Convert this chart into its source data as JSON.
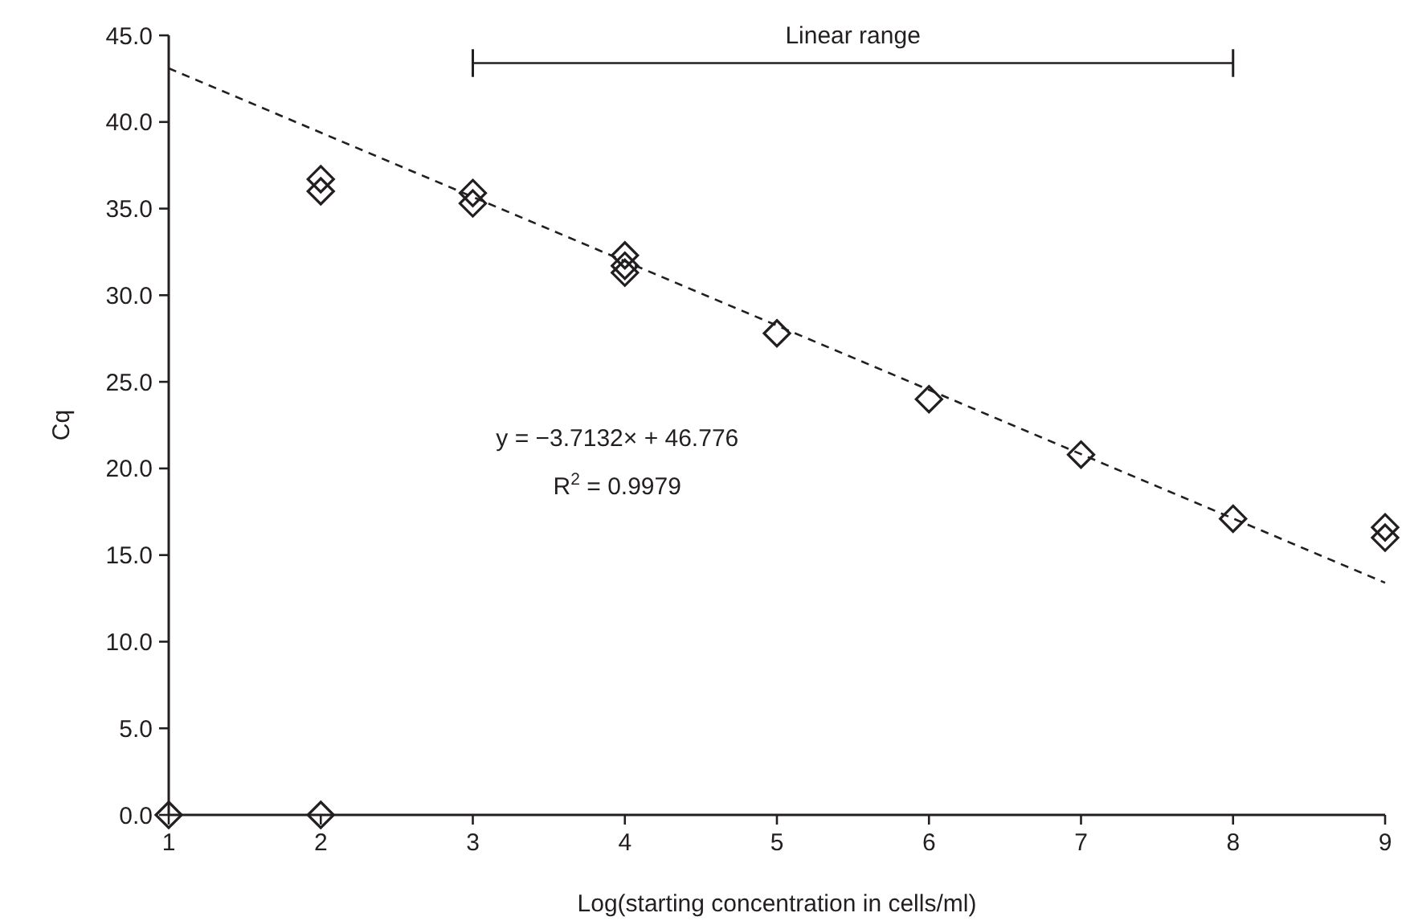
{
  "chart_data": {
    "type": "scatter",
    "xlabel": "Log(starting concentration in cells/ml)",
    "ylabel": "Cq",
    "series": [
      {
        "color": "#231f20",
        "x": [
          1,
          2,
          2,
          2,
          3,
          3,
          4,
          4,
          4,
          5,
          6,
          7,
          8,
          9,
          9
        ],
        "values": [
          0,
          0,
          36.7,
          36.0,
          35.9,
          35.3,
          32.3,
          31.7,
          31.3,
          27.8,
          24.0,
          20.8,
          17.1,
          16.6,
          16.0
        ]
      },
      {
        "type": "line",
        "color": "#231f20",
        "line_style": "dashed",
        "marker": "none",
        "x": [
          1,
          9
        ],
        "values": [
          43.1,
          13.4
        ]
      },
      {
        "type": "line",
        "color": "#231f20",
        "line_style": "solid",
        "marker": "none",
        "x": [
          3,
          8
        ],
        "values": [
          43.4,
          43.4
        ],
        "errors": [
          0.8,
          0.8
        ]
      }
    ],
    "marker": "diamond",
    "xlim": [
      1,
      9
    ],
    "ylim": [
      0,
      45
    ],
    "xticks": [
      1,
      2,
      3,
      4,
      5,
      6,
      7,
      8,
      9
    ],
    "yticks": [
      {
        "value": 0,
        "label": "0.0"
      },
      {
        "value": 5,
        "label": "5.0"
      },
      {
        "value": 10,
        "label": "10.0"
      },
      {
        "value": 15,
        "label": "15.0"
      },
      {
        "value": 20,
        "label": "20.0"
      },
      {
        "value": 25,
        "label": "25.0"
      },
      {
        "value": 30,
        "label": "30.0"
      },
      {
        "value": 35,
        "label": "35.0"
      },
      {
        "value": 40,
        "label": "40.0"
      },
      {
        "value": 45,
        "label": "45.0"
      }
    ],
    "annotations": [
      {
        "text": "Linear range",
        "x": 5.5,
        "y": 43.4
      },
      "y = −3.7132× + 46.776",
      "R$^{2}$ = 0.9979"
    ],
    "grid": false
  }
}
